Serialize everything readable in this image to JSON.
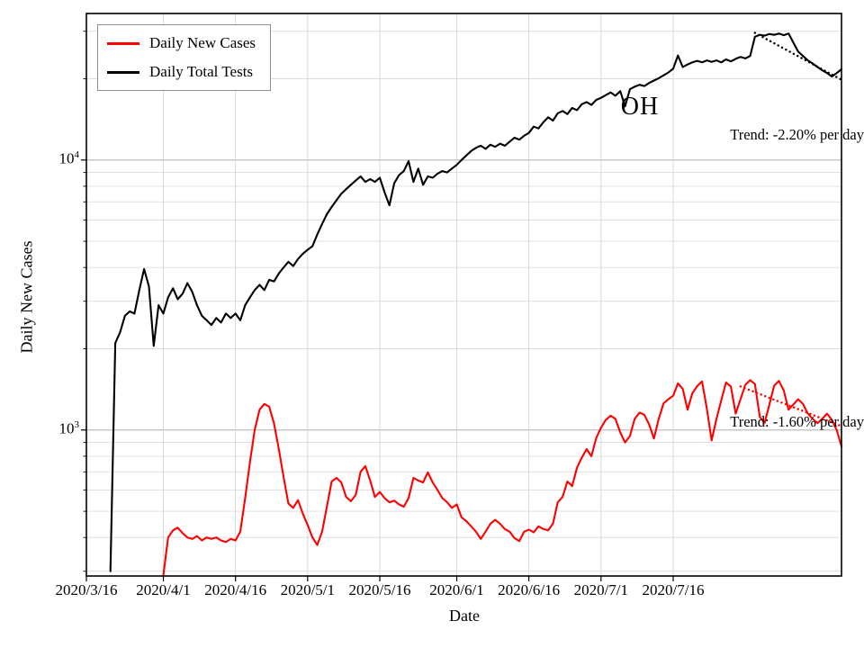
{
  "chart_data": {
    "type": "line",
    "title": "",
    "state_label": "OH",
    "xlabel": "Date",
    "ylabel": "Daily New Cases",
    "y_scale": "log",
    "ylim": [
      288,
      34900
    ],
    "xlim_days": [
      0,
      157
    ],
    "grid": true,
    "legend_position": "upper-left",
    "x_tick_labels": [
      "2020/3/16",
      "2020/4/1",
      "2020/4/16",
      "2020/5/1",
      "2020/5/16",
      "2020/6/1",
      "2020/6/16",
      "2020/7/1",
      "2020/7/16"
    ],
    "x_tick_days": [
      0,
      16,
      31,
      46,
      61,
      77,
      92,
      107,
      122
    ],
    "y_major_ticks": [
      1000,
      10000
    ],
    "y_minor_ticks": [
      300,
      400,
      500,
      600,
      700,
      800,
      900,
      2000,
      3000,
      4000,
      5000,
      6000,
      7000,
      8000,
      9000,
      20000,
      30000
    ],
    "series": [
      {
        "id": "daily-new-cases",
        "name": "Daily New Cases",
        "color": "#ff0000",
        "start_day": 16,
        "values": [
          290,
          400,
          425,
          435,
          415,
          400,
          395,
          405,
          390,
          400,
          395,
          400,
          390,
          385,
          395,
          390,
          420,
          560,
          760,
          1000,
          1190,
          1250,
          1220,
          1060,
          850,
          670,
          535,
          515,
          550,
          490,
          445,
          400,
          375,
          420,
          520,
          645,
          665,
          640,
          565,
          545,
          575,
          700,
          735,
          650,
          565,
          590,
          560,
          540,
          548,
          530,
          520,
          560,
          665,
          650,
          640,
          697,
          640,
          600,
          560,
          540,
          515,
          530,
          475,
          460,
          440,
          420,
          395,
          420,
          450,
          465,
          450,
          430,
          420,
          398,
          388,
          420,
          428,
          418,
          440,
          430,
          425,
          450,
          540,
          565,
          645,
          620,
          725,
          790,
          850,
          800,
          935,
          1020,
          1090,
          1130,
          1100,
          980,
          900,
          950,
          1100,
          1160,
          1140,
          1050,
          930,
          1100,
          1255,
          1300,
          1340,
          1490,
          1420,
          1190,
          1370,
          1455,
          1515,
          1200,
          915,
          1100,
          1290,
          1500,
          1450,
          1150,
          1300,
          1470,
          1530,
          1480,
          1120,
          1060,
          1240,
          1460,
          1520,
          1400,
          1190,
          1245,
          1300,
          1250,
          1150,
          1100,
          1060,
          1100,
          1150,
          1090,
          1000,
          870
        ]
      },
      {
        "id": "daily-total-tests",
        "name": "Daily Total Tests",
        "color": "#000000",
        "start_day": 5,
        "values": [
          300,
          2100,
          2300,
          2650,
          2750,
          2700,
          3300,
          3950,
          3400,
          2050,
          2900,
          2700,
          3100,
          3350,
          3050,
          3200,
          3500,
          3250,
          2900,
          2650,
          2550,
          2450,
          2600,
          2500,
          2700,
          2600,
          2700,
          2550,
          2900,
          3100,
          3300,
          3450,
          3300,
          3600,
          3550,
          3800,
          4000,
          4200,
          4050,
          4300,
          4500,
          4650,
          4800,
          5300,
          5800,
          6300,
          6700,
          7100,
          7500,
          7800,
          8100,
          8400,
          8700,
          8300,
          8500,
          8300,
          8600,
          7600,
          6800,
          8200,
          8800,
          9100,
          9900,
          8300,
          9300,
          8100,
          8700,
          8600,
          8900,
          9100,
          9000,
          9300,
          9600,
          10000,
          10400,
          10800,
          11100,
          11300,
          11000,
          11400,
          11200,
          11500,
          11300,
          11700,
          12100,
          11900,
          12300,
          12600,
          13300,
          13100,
          13800,
          14400,
          14000,
          14900,
          15200,
          14800,
          15600,
          15300,
          16100,
          16400,
          16000,
          16700,
          17000,
          17400,
          17800,
          17300,
          18000,
          15800,
          18300,
          18700,
          19000,
          18800,
          19300,
          19700,
          20100,
          20600,
          21100,
          21800,
          24400,
          22100,
          22600,
          23000,
          23300,
          23000,
          23400,
          23100,
          23400,
          23000,
          23600,
          23200,
          23700,
          24100,
          23800,
          24300,
          28600,
          29100,
          28900,
          29300,
          29100,
          29400,
          29000,
          29400,
          27200,
          25200,
          24300,
          23400,
          22800,
          22100,
          21500,
          21000,
          20400,
          21000,
          21700
        ]
      }
    ],
    "trends": [
      {
        "id": "tests",
        "label": "Trend: -2.20% per day",
        "rate_pct_per_day": -2.2,
        "start_day": 139,
        "end_day": 157,
        "start_value": 29600,
        "color": "#000000"
      },
      {
        "id": "cases",
        "label": "Trend: -1.60% per day",
        "rate_pct_per_day": -1.6,
        "start_day": 136,
        "end_day": 157,
        "start_value": 1450,
        "color": "#ff0000"
      }
    ]
  }
}
